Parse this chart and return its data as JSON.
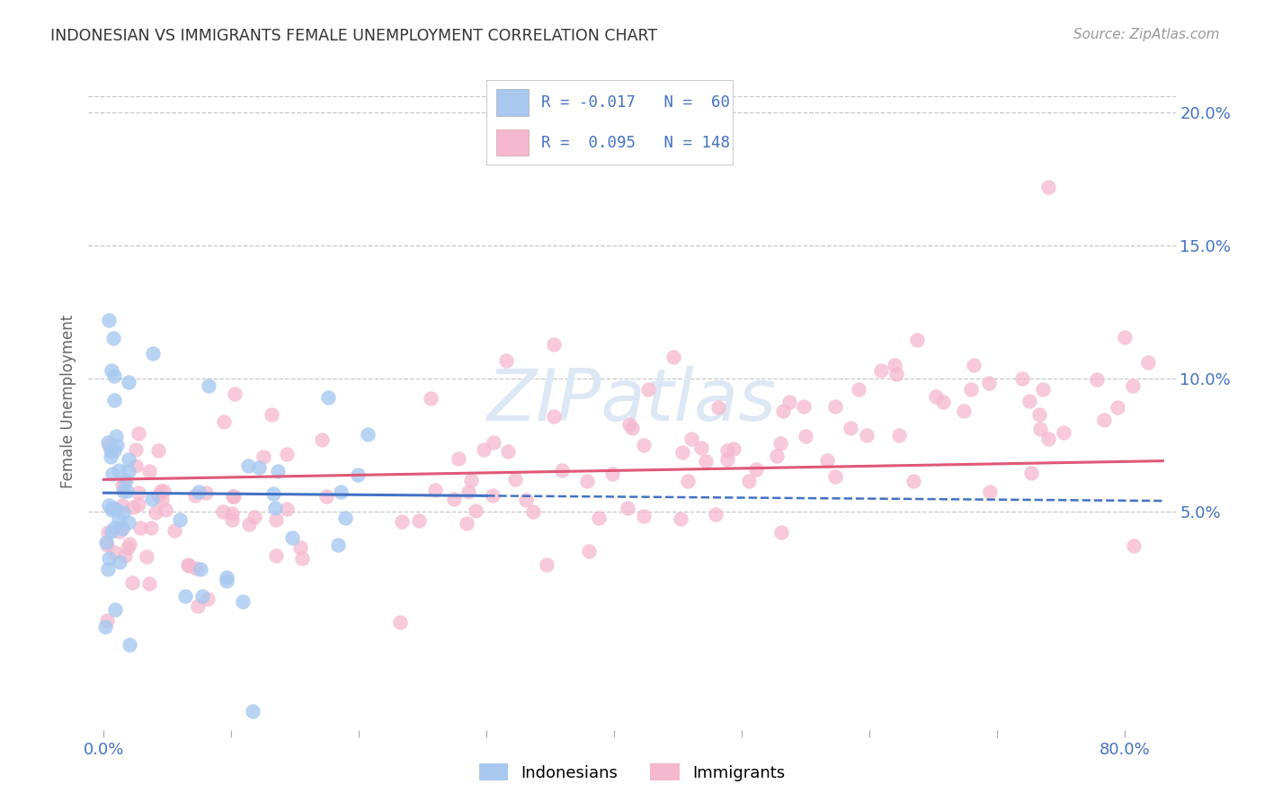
{
  "title": "INDONESIAN VS IMMIGRANTS FEMALE UNEMPLOYMENT CORRELATION CHART",
  "source": "Source: ZipAtlas.com",
  "ylabel": "Female Unemployment",
  "indonesian_color": "#a8c8f0",
  "immigrant_color": "#f5b8ce",
  "indonesian_R": -0.017,
  "indonesian_N": 60,
  "immigrant_R": 0.095,
  "immigrant_N": 148,
  "trend_indonesian_color": "#4472c4",
  "trend_immigrant_color": "#e05878",
  "legend_label_indonesian": "Indonesians",
  "legend_label_immigrant": "Immigrants",
  "background_color": "#ffffff",
  "grid_color": "#c8c8c8",
  "legend_text_color": "#4472c4",
  "watermark_text": "ZIPatlas",
  "watermark_color": "#dde8f5",
  "title_color": "#333333",
  "source_color": "#999999",
  "ylabel_color": "#666666",
  "axis_tick_color": "#4472c4",
  "xlim": [
    -0.012,
    0.84
  ],
  "ylim": [
    -0.032,
    0.215
  ],
  "x_tick_positions": [
    0.0,
    0.1,
    0.2,
    0.3,
    0.4,
    0.5,
    0.6,
    0.7,
    0.8
  ],
  "x_tick_labels": [
    "0.0%",
    "",
    "",
    "",
    "",
    "",
    "",
    "",
    "80.0%"
  ],
  "y_tick_positions": [
    0.05,
    0.1,
    0.15,
    0.2
  ],
  "y_tick_labels": [
    "5.0%",
    "10.0%",
    "15.0%",
    "20.0%"
  ],
  "trend_indo_x0": 0.0,
  "trend_indo_x1": 0.83,
  "trend_indo_y0": 0.057,
  "trend_indo_y1": 0.054,
  "trend_indo_solid_end": 0.3,
  "trend_imm_x0": 0.0,
  "trend_imm_x1": 0.83,
  "trend_imm_y0": 0.062,
  "trend_imm_y1": 0.069
}
